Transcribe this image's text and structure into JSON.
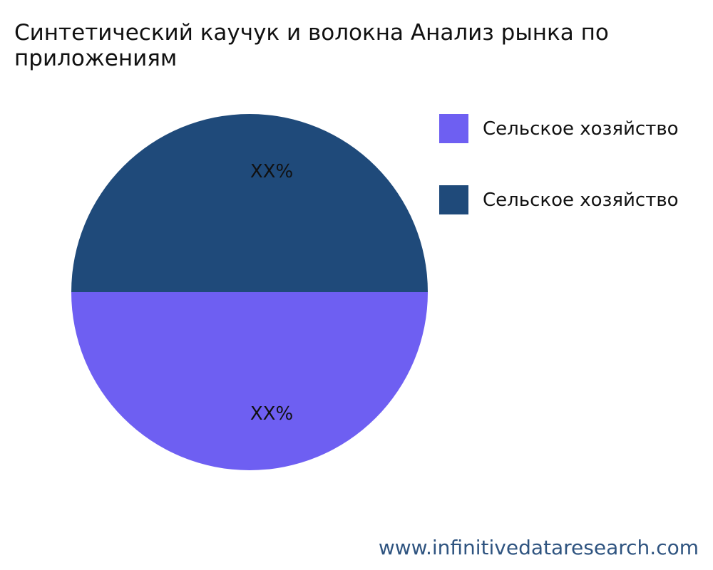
{
  "chart_data": {
    "type": "pie",
    "title": "Синтетический каучук и волокна Анализ рынка по приложениям",
    "slices": [
      {
        "name": "Сельское хозяйство",
        "value": 50,
        "label": "XX%",
        "color": "#6e5ff2"
      },
      {
        "name": "Сельское хозяйство",
        "value": 50,
        "label": "XX%",
        "color": "#1f4a7a"
      }
    ],
    "legend_position": "top-right"
  },
  "watermark": "www.infinitivedataresearch.com"
}
